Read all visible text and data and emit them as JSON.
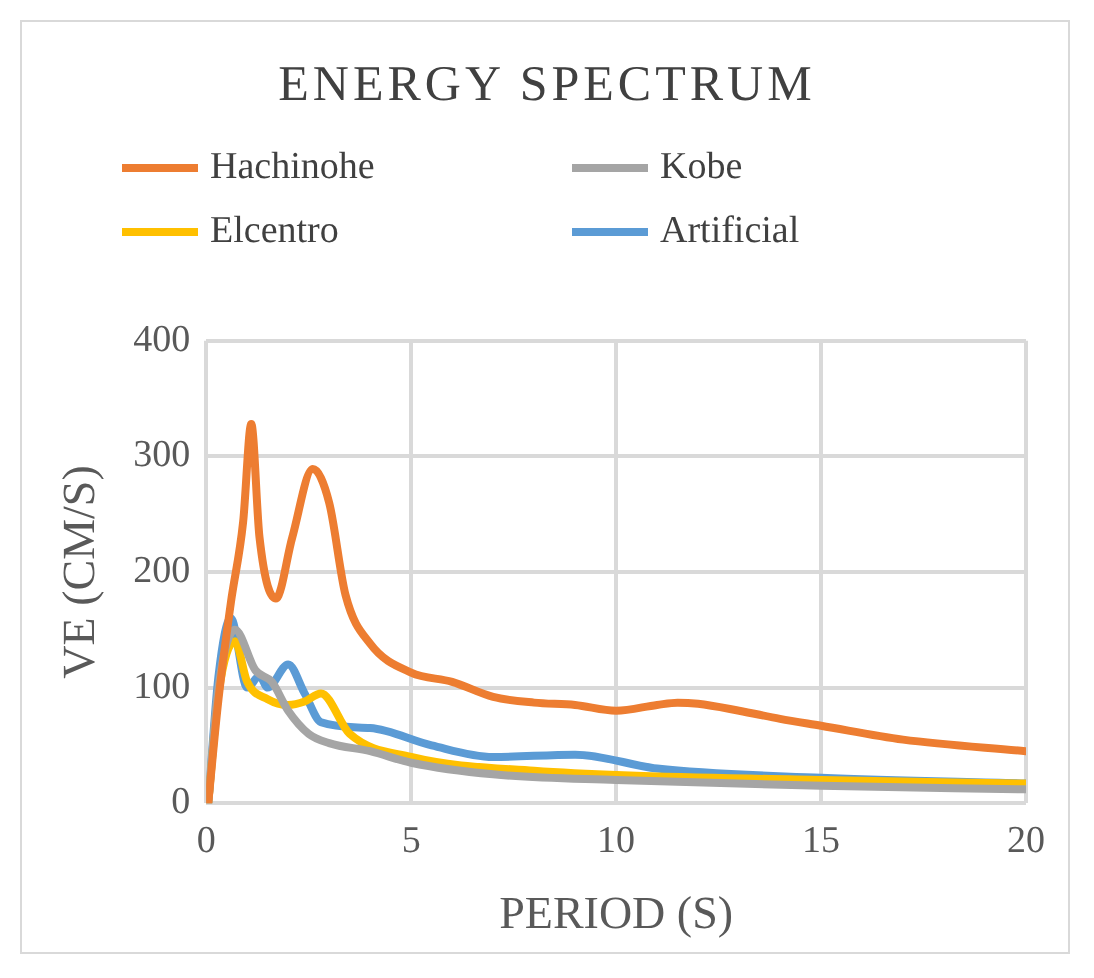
{
  "chart_data": {
    "type": "line",
    "title": "ENERGY SPECTRUM",
    "xlabel": "PERIOD (S)",
    "ylabel": "VE (CM/S)",
    "xlim": [
      0,
      20
    ],
    "xticks": [
      0,
      5,
      10,
      15,
      20
    ],
    "ylim": [
      0,
      400
    ],
    "yticks": [
      0,
      100,
      200,
      300,
      400
    ],
    "grid": true,
    "legend": "top",
    "marker": "none",
    "line_style": "solid",
    "series": [
      {
        "name": "Hachinohe",
        "color": "#ed7d31",
        "x": [
          0.05,
          0.3,
          0.6,
          0.9,
          1.1,
          1.3,
          1.7,
          2.1,
          2.6,
          3,
          3.4,
          4,
          5,
          6,
          7,
          8,
          9,
          10,
          11,
          11.5,
          12,
          13,
          14,
          15,
          17,
          20
        ],
        "values": [
          0,
          90,
          173,
          243,
          328,
          230,
          177,
          230,
          289,
          260,
          180,
          138,
          113,
          105,
          92,
          87,
          85,
          80,
          85,
          87,
          86,
          80,
          73,
          67,
          55,
          45
        ]
      },
      {
        "name": "Kobe",
        "color": "#a5a5a5",
        "x": [
          0.05,
          0.3,
          0.7,
          1.2,
          1.6,
          2,
          2.5,
          3,
          4,
          5,
          7,
          10,
          15,
          20
        ],
        "values": [
          0,
          100,
          150,
          115,
          105,
          80,
          60,
          52,
          45,
          35,
          25,
          20,
          15,
          12
        ]
      },
      {
        "name": "Elcentro",
        "color": "#ffc000",
        "x": [
          0.05,
          0.3,
          0.7,
          1,
          1.5,
          2,
          2.4,
          2.8,
          3.5,
          5,
          8,
          15,
          20
        ],
        "values": [
          0,
          95,
          140,
          105,
          90,
          85,
          88,
          95,
          60,
          40,
          28,
          20,
          17
        ]
      },
      {
        "name": "Artificial",
        "color": "#5b9bd5",
        "x": [
          0.05,
          0.3,
          0.6,
          1,
          1.3,
          1.5,
          2,
          2.4,
          2.8,
          4,
          5.5,
          7,
          9,
          11,
          15,
          20
        ],
        "values": [
          0,
          110,
          160,
          100,
          110,
          100,
          120,
          95,
          70,
          65,
          50,
          40,
          42,
          30,
          22,
          17
        ]
      }
    ]
  }
}
